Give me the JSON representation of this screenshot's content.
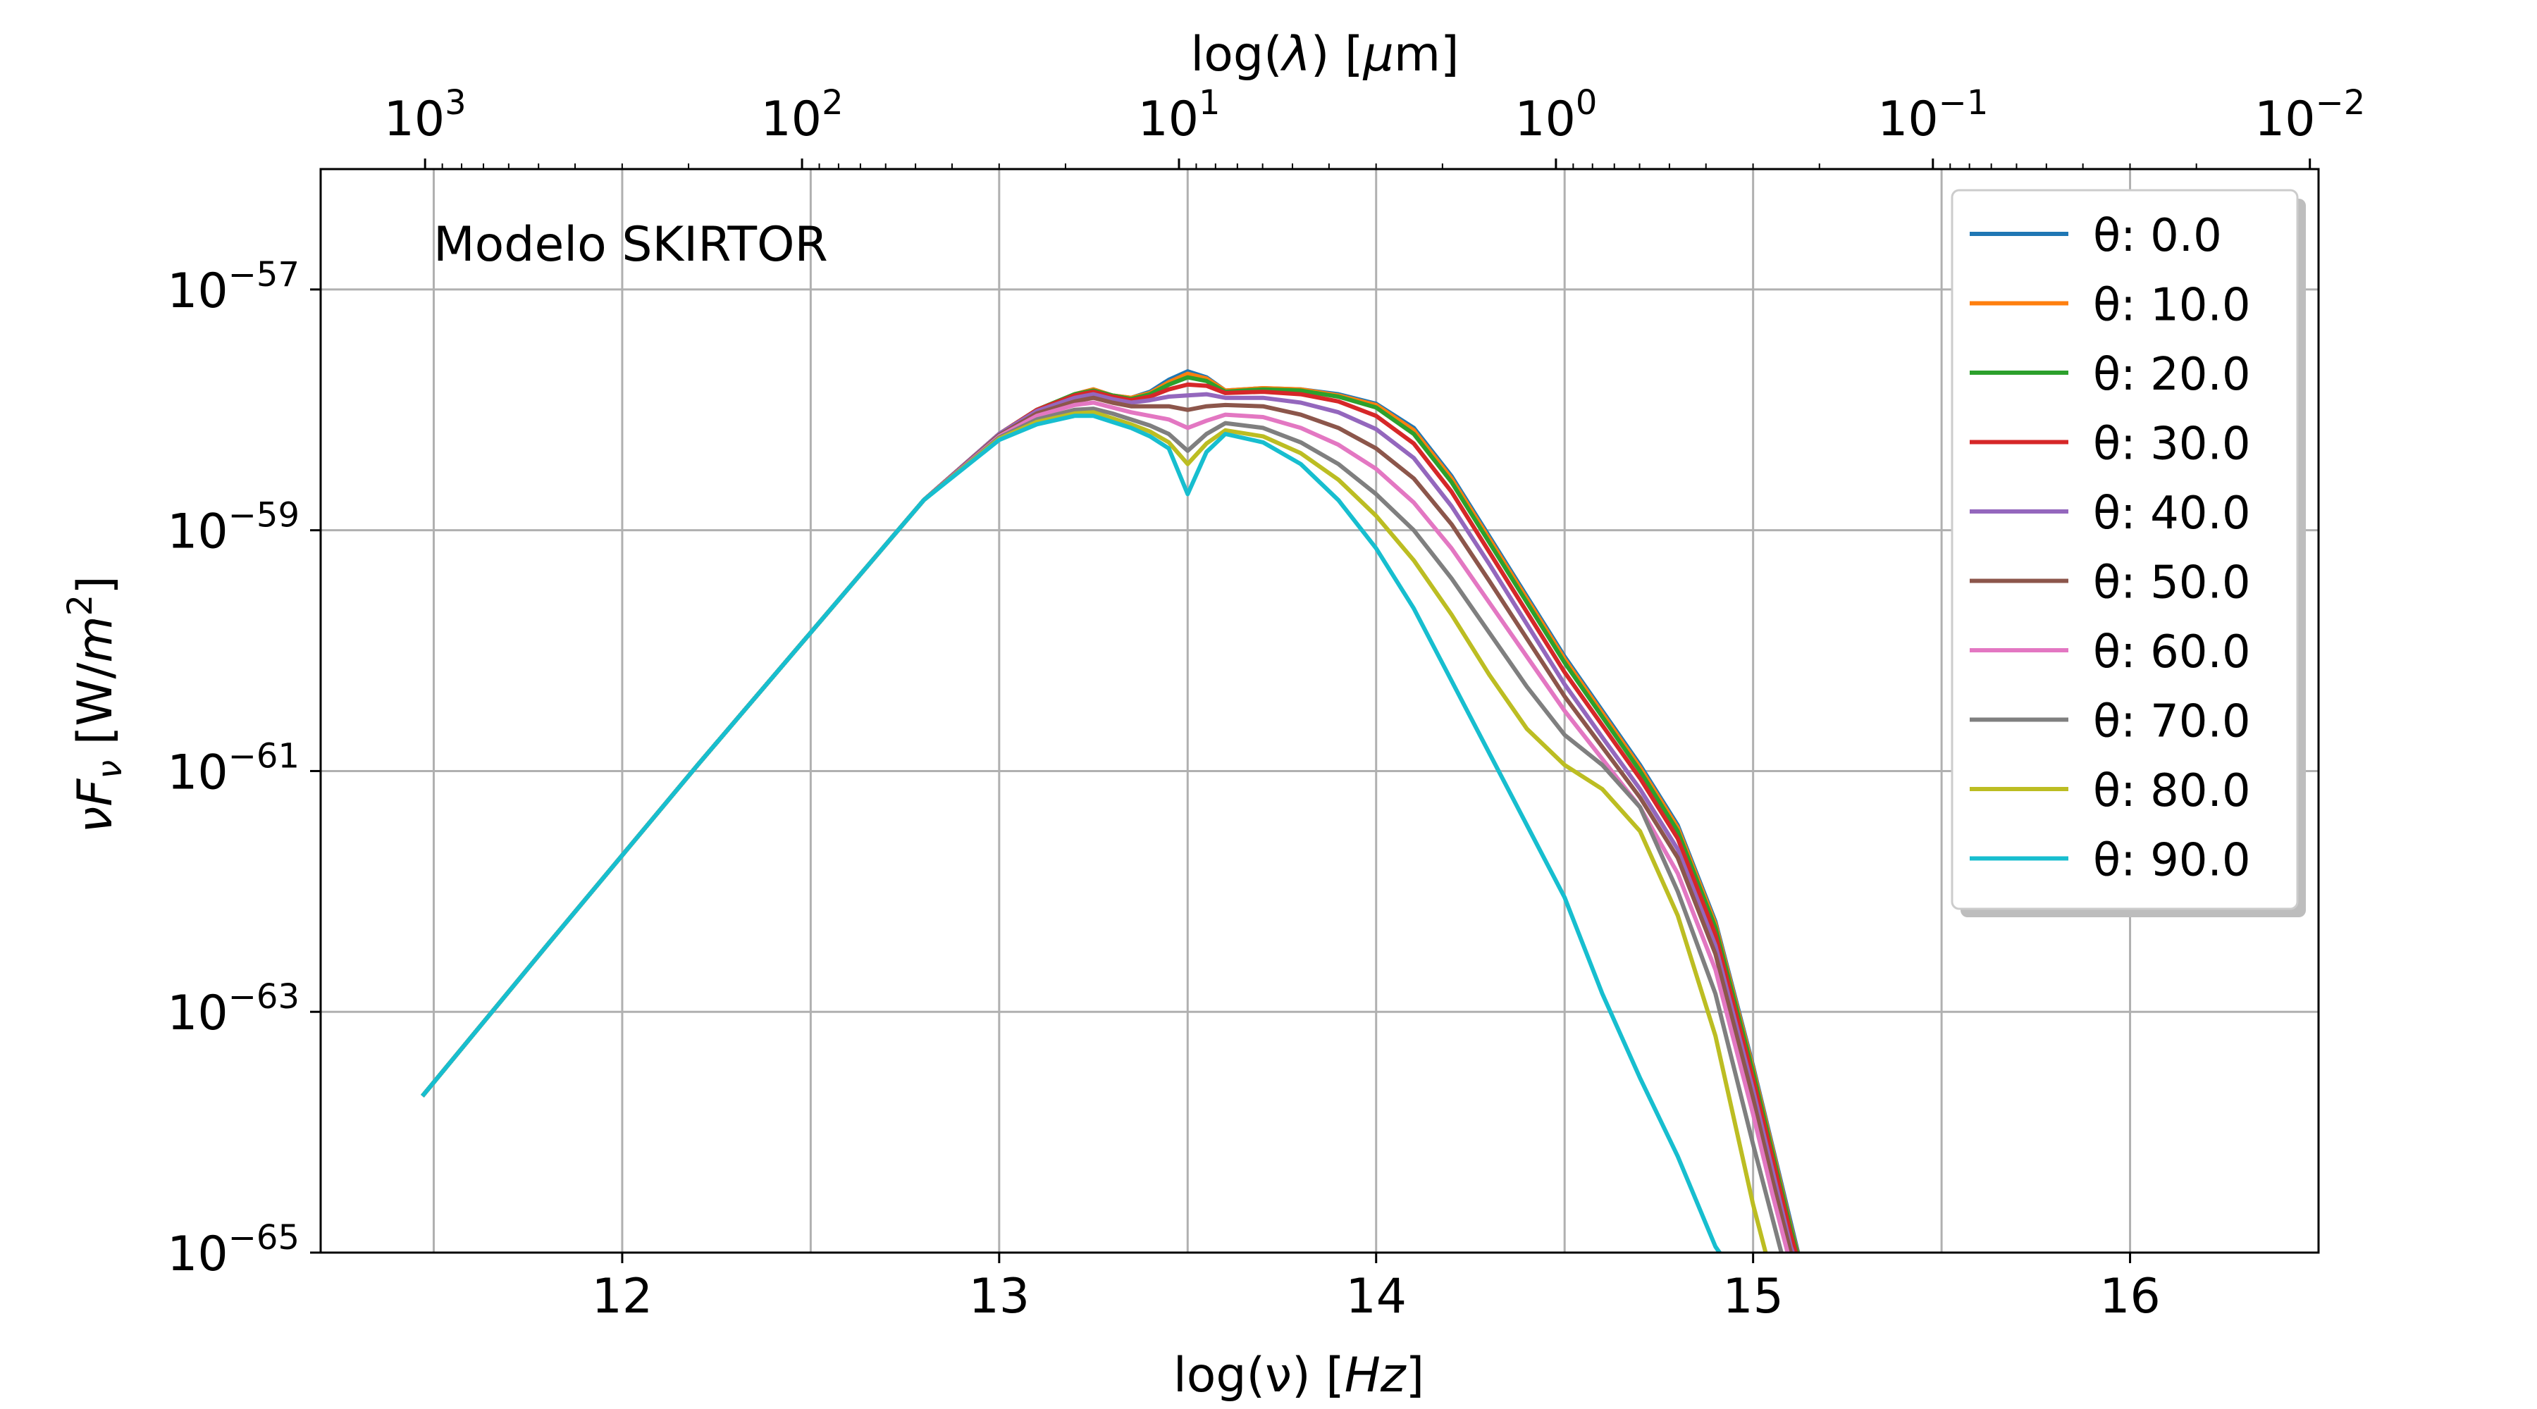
{
  "chart_data": {
    "type": "line",
    "annotation": "Modelo SKIRTOR",
    "xlabel_bottom": "log(ν) [Hz]",
    "xlabel_top": "log(λ) [μm]",
    "ylabel": "νF_ν [W/m^2]",
    "xlim": [
      11.2,
      16.5
    ],
    "ylim_log10": [
      -65,
      -56
    ],
    "x_ticks": [
      "12",
      "13",
      "14",
      "15",
      "16"
    ],
    "y_ticks": [
      "10^-57",
      "10^-59",
      "10^-61",
      "10^-63",
      "10^-65"
    ],
    "top_ticks": [
      "10^3",
      "10^2",
      "10^1",
      "10^0",
      "10^-1",
      "10^-2"
    ],
    "grid": true,
    "legend_position": "top-right",
    "x": [
      11.47,
      11.8,
      12.2,
      12.5,
      12.8,
      13.0,
      13.1,
      13.2,
      13.25,
      13.3,
      13.35,
      13.4,
      13.45,
      13.5,
      13.55,
      13.6,
      13.7,
      13.8,
      13.9,
      14.0,
      14.1,
      14.2,
      14.3,
      14.4,
      14.5,
      14.6,
      14.7,
      14.8,
      14.9,
      15.0,
      15.05,
      15.1,
      15.15
    ],
    "series": [
      {
        "name": "θ: 0.0",
        "color": "#1f77b4",
        "values": [
          -63.7,
          -62.45,
          -60.95,
          -59.85,
          -58.75,
          -58.2,
          -58.0,
          -57.87,
          -57.83,
          -57.88,
          -57.9,
          -57.85,
          -57.75,
          -57.68,
          -57.73,
          -57.84,
          -57.82,
          -57.83,
          -57.87,
          -57.95,
          -58.15,
          -58.55,
          -59.05,
          -59.55,
          -60.05,
          -60.5,
          -60.95,
          -61.45,
          -62.25,
          -63.45,
          -64.1,
          -64.75,
          -65.4
        ]
      },
      {
        "name": "θ: 10.0",
        "color": "#ff7f0e",
        "values": [
          -63.7,
          -62.45,
          -60.95,
          -59.85,
          -58.75,
          -58.2,
          -58.0,
          -57.87,
          -57.83,
          -57.88,
          -57.9,
          -57.86,
          -57.77,
          -57.7,
          -57.74,
          -57.84,
          -57.82,
          -57.83,
          -57.88,
          -57.96,
          -58.17,
          -58.57,
          -59.07,
          -59.57,
          -60.07,
          -60.52,
          -60.97,
          -61.47,
          -62.27,
          -63.47,
          -64.12,
          -64.78,
          -65.4
        ]
      },
      {
        "name": "θ: 20.0",
        "color": "#2ca02c",
        "values": [
          -63.7,
          -62.45,
          -60.95,
          -59.85,
          -58.75,
          -58.2,
          -58.0,
          -57.87,
          -57.84,
          -57.88,
          -57.91,
          -57.87,
          -57.79,
          -57.73,
          -57.76,
          -57.85,
          -57.83,
          -57.84,
          -57.89,
          -57.98,
          -58.2,
          -58.6,
          -59.1,
          -59.6,
          -60.1,
          -60.55,
          -61.0,
          -61.5,
          -62.3,
          -63.5,
          -64.15,
          -64.8,
          -65.4
        ]
      },
      {
        "name": "θ: 30.0",
        "color": "#d62728",
        "values": [
          -63.7,
          -62.45,
          -60.95,
          -59.85,
          -58.75,
          -58.2,
          -58.0,
          -57.88,
          -57.85,
          -57.89,
          -57.92,
          -57.89,
          -57.83,
          -57.79,
          -57.8,
          -57.86,
          -57.85,
          -57.87,
          -57.93,
          -58.05,
          -58.28,
          -58.68,
          -59.18,
          -59.68,
          -60.18,
          -60.62,
          -61.06,
          -61.56,
          -62.36,
          -63.56,
          -64.2,
          -64.85,
          -65.4
        ]
      },
      {
        "name": "θ: 40.0",
        "color": "#9467bd",
        "values": [
          -63.7,
          -62.45,
          -60.95,
          -59.85,
          -58.75,
          -58.2,
          -58.01,
          -57.9,
          -57.87,
          -57.91,
          -57.94,
          -57.92,
          -57.89,
          -57.88,
          -57.87,
          -57.9,
          -57.9,
          -57.94,
          -58.02,
          -58.16,
          -58.4,
          -58.8,
          -59.28,
          -59.78,
          -60.28,
          -60.72,
          -61.15,
          -61.65,
          -62.45,
          -63.65,
          -64.3,
          -64.95,
          -65.4
        ]
      },
      {
        "name": "θ: 50.0",
        "color": "#8c564b",
        "values": [
          -63.7,
          -62.45,
          -60.95,
          -59.85,
          -58.75,
          -58.21,
          -58.03,
          -57.93,
          -57.9,
          -57.94,
          -57.97,
          -57.97,
          -57.97,
          -58.0,
          -57.97,
          -57.96,
          -57.97,
          -58.04,
          -58.15,
          -58.32,
          -58.57,
          -58.95,
          -59.42,
          -59.9,
          -60.38,
          -60.8,
          -61.22,
          -61.72,
          -62.52,
          -63.72,
          -64.38,
          -65.0,
          -65.4
        ]
      },
      {
        "name": "θ: 60.0",
        "color": "#e377c2",
        "values": [
          -63.7,
          -62.45,
          -60.95,
          -59.85,
          -58.75,
          -58.22,
          -58.05,
          -57.96,
          -57.94,
          -57.98,
          -58.02,
          -58.05,
          -58.08,
          -58.15,
          -58.09,
          -58.04,
          -58.06,
          -58.15,
          -58.29,
          -58.49,
          -58.77,
          -59.15,
          -59.6,
          -60.05,
          -60.5,
          -60.9,
          -61.3,
          -61.85,
          -62.65,
          -63.85,
          -64.5,
          -65.1,
          -65.4
        ]
      },
      {
        "name": "θ: 70.0",
        "color": "#7f7f7f",
        "values": [
          -63.7,
          -62.45,
          -60.95,
          -59.85,
          -58.75,
          -58.23,
          -58.08,
          -58.0,
          -57.99,
          -58.03,
          -58.08,
          -58.13,
          -58.2,
          -58.34,
          -58.2,
          -58.11,
          -58.15,
          -58.27,
          -58.45,
          -58.7,
          -59.0,
          -59.4,
          -59.85,
          -60.3,
          -60.7,
          -60.95,
          -61.3,
          -62.0,
          -62.85,
          -64.1,
          -64.7,
          -65.3,
          -65.4
        ]
      },
      {
        "name": "θ: 80.0",
        "color": "#bcbd22",
        "values": [
          -63.7,
          -62.45,
          -60.95,
          -59.85,
          -58.75,
          -58.24,
          -58.1,
          -58.03,
          -58.02,
          -58.07,
          -58.12,
          -58.18,
          -58.27,
          -58.45,
          -58.28,
          -58.17,
          -58.22,
          -58.36,
          -58.58,
          -58.88,
          -59.25,
          -59.7,
          -60.2,
          -60.65,
          -60.95,
          -61.15,
          -61.5,
          -62.2,
          -63.2,
          -64.6,
          -65.2,
          -65.4,
          -65.4
        ]
      },
      {
        "name": "θ: 90.0",
        "color": "#17becf",
        "values": [
          -63.7,
          -62.45,
          -60.95,
          -59.85,
          -58.75,
          -58.25,
          -58.12,
          -58.05,
          -58.05,
          -58.1,
          -58.15,
          -58.22,
          -58.32,
          -58.7,
          -58.35,
          -58.2,
          -58.27,
          -58.45,
          -58.75,
          -59.15,
          -59.65,
          -60.25,
          -60.85,
          -61.45,
          -62.05,
          -62.85,
          -63.55,
          -64.2,
          -64.95,
          -65.4,
          -65.4,
          -65.4,
          -65.4
        ]
      }
    ]
  }
}
